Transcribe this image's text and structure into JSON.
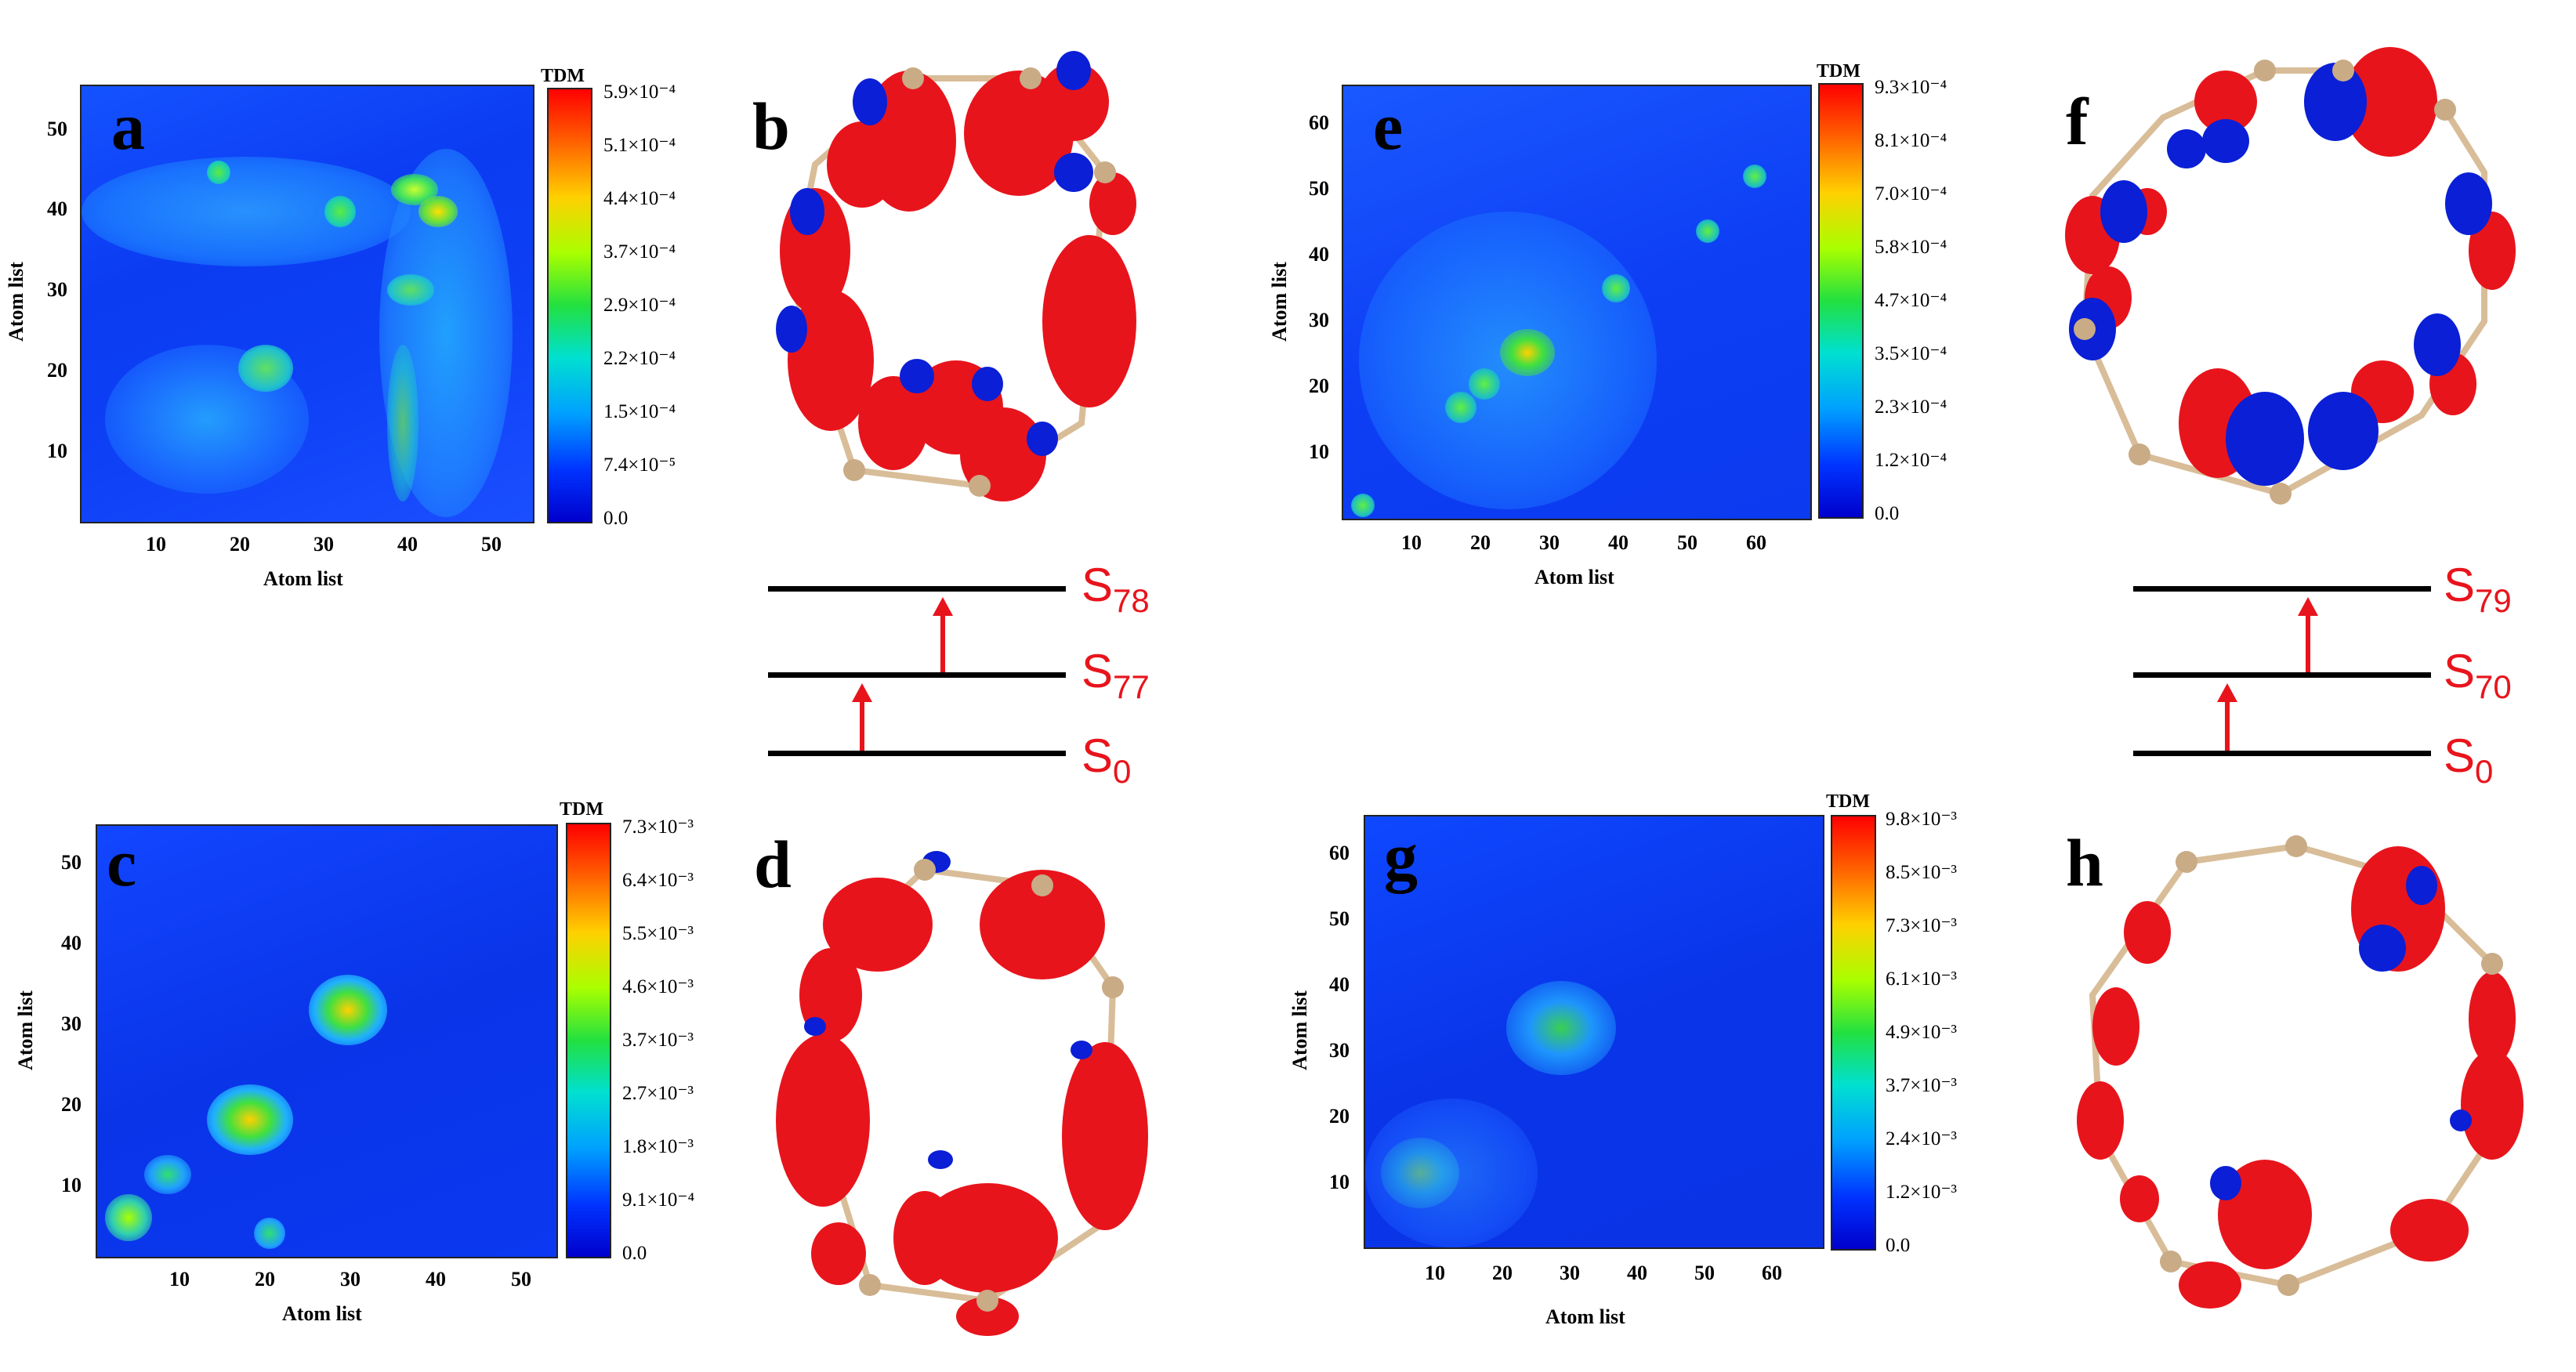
{
  "figure": {
    "panels": {
      "a": {
        "label": "a",
        "xlabel": "Atom list",
        "ylabel": "Atom list",
        "xticks": [
          "10",
          "20",
          "30",
          "40",
          "50"
        ],
        "yticks": [
          "10",
          "20",
          "30",
          "40",
          "50"
        ],
        "cb_title": "TDM",
        "cb_ticks": [
          "5.9×10⁻⁴",
          "5.1×10⁻⁴",
          "4.4×10⁻⁴",
          "3.7×10⁻⁴",
          "2.9×10⁻⁴",
          "2.2×10⁻⁴",
          "1.5×10⁻⁴",
          "7.4×10⁻⁵",
          "0.0"
        ]
      },
      "c": {
        "label": "c",
        "xlabel": "Atom list",
        "ylabel": "Atom list",
        "xticks": [
          "10",
          "20",
          "30",
          "40",
          "50"
        ],
        "yticks": [
          "10",
          "20",
          "30",
          "40",
          "50"
        ],
        "cb_title": "TDM",
        "cb_ticks": [
          "7.3×10⁻³",
          "6.4×10⁻³",
          "5.5×10⁻³",
          "4.6×10⁻³",
          "3.7×10⁻³",
          "2.7×10⁻³",
          "1.8×10⁻³",
          "9.1×10⁻⁴",
          "0.0"
        ]
      },
      "e": {
        "label": "e",
        "xlabel": "Atom list",
        "ylabel": "Atom list",
        "xticks": [
          "10",
          "20",
          "30",
          "40",
          "50",
          "60"
        ],
        "yticks": [
          "10",
          "20",
          "30",
          "40",
          "50",
          "60"
        ],
        "cb_title": "TDM",
        "cb_ticks": [
          "9.3×10⁻⁴",
          "8.1×10⁻⁴",
          "7.0×10⁻⁴",
          "5.8×10⁻⁴",
          "4.7×10⁻⁴",
          "3.5×10⁻⁴",
          "2.3×10⁻⁴",
          "1.2×10⁻⁴",
          "0.0"
        ]
      },
      "g": {
        "label": "g",
        "xlabel": "Atom list",
        "ylabel": "Atom list",
        "xticks": [
          "10",
          "20",
          "30",
          "40",
          "50",
          "60"
        ],
        "yticks": [
          "10",
          "20",
          "30",
          "40",
          "50",
          "60"
        ],
        "cb_title": "TDM",
        "cb_ticks": [
          "9.8×10⁻³",
          "8.5×10⁻³",
          "7.3×10⁻³",
          "6.1×10⁻³",
          "4.9×10⁻³",
          "3.7×10⁻³",
          "2.4×10⁻³",
          "1.2×10⁻³",
          "0.0"
        ]
      },
      "b": {
        "label": "b"
      },
      "d": {
        "label": "d"
      },
      "f": {
        "label": "f"
      },
      "h": {
        "label": "h"
      }
    },
    "diagram_left": {
      "states": [
        {
          "base": "S",
          "sub": "78"
        },
        {
          "base": "S",
          "sub": "77"
        },
        {
          "base": "S",
          "sub": "0"
        }
      ]
    },
    "diagram_right": {
      "states": [
        {
          "base": "S",
          "sub": "79"
        },
        {
          "base": "S",
          "sub": "70"
        },
        {
          "base": "S",
          "sub": "0"
        }
      ]
    },
    "colors": {
      "arrow": "#e8141c",
      "lobe_red": "#e8141c",
      "lobe_blue": "#0a1fd6",
      "atom": "#c9ab86",
      "bond": "#d8bd98"
    }
  },
  "chart_data": [
    {
      "type": "heatmap",
      "panel": "a",
      "title": "",
      "xlabel": "Atom list",
      "ylabel": "Atom list",
      "xlim": [
        1,
        55
      ],
      "ylim": [
        1,
        55
      ],
      "colorbar": {
        "label": "TDM",
        "min": 0.0,
        "max": 0.00059
      }
    },
    {
      "type": "heatmap",
      "panel": "c",
      "title": "",
      "xlabel": "Atom list",
      "ylabel": "Atom list",
      "xlim": [
        1,
        55
      ],
      "ylim": [
        1,
        55
      ],
      "colorbar": {
        "label": "TDM",
        "min": 0.0,
        "max": 0.0073
      }
    },
    {
      "type": "heatmap",
      "panel": "e",
      "title": "",
      "xlabel": "Atom list",
      "ylabel": "Atom list",
      "xlim": [
        1,
        66
      ],
      "ylim": [
        1,
        66
      ],
      "colorbar": {
        "label": "TDM",
        "min": 0.0,
        "max": 0.00093
      }
    },
    {
      "type": "heatmap",
      "panel": "g",
      "title": "",
      "xlabel": "Atom list",
      "ylabel": "Atom list",
      "xlim": [
        1,
        66
      ],
      "ylim": [
        1,
        66
      ],
      "colorbar": {
        "label": "TDM",
        "min": 0.0,
        "max": 0.0098
      }
    }
  ]
}
